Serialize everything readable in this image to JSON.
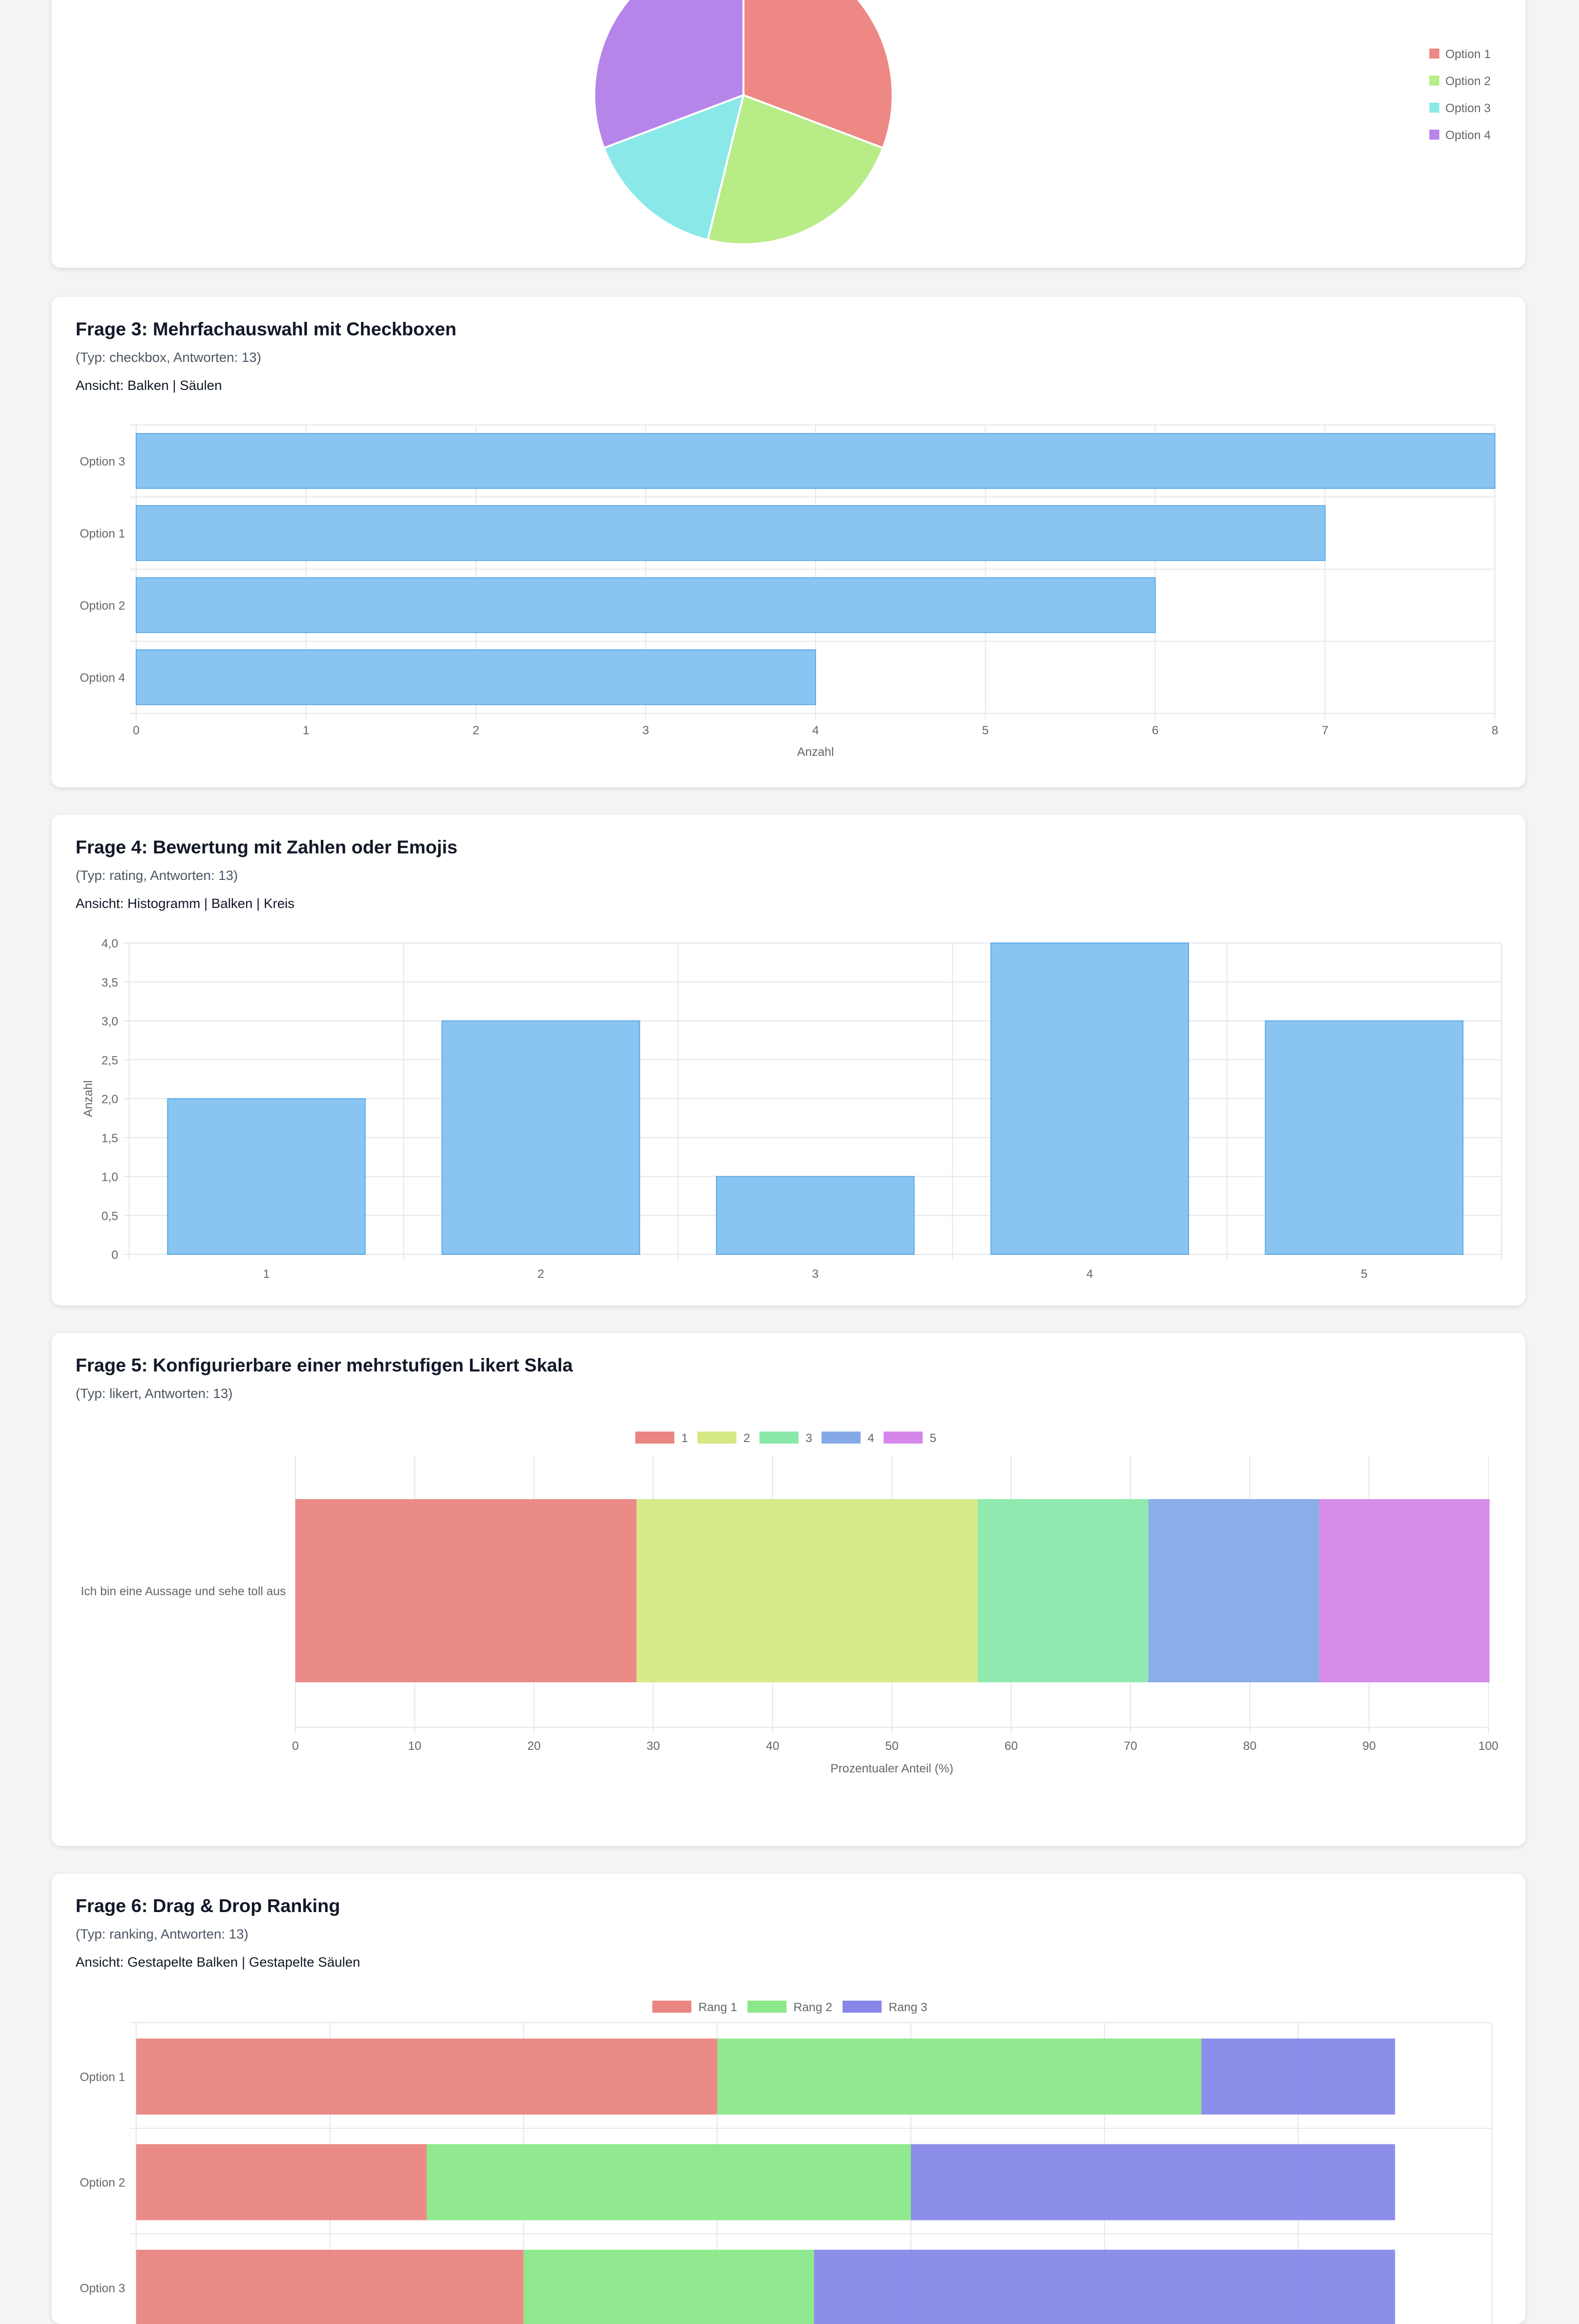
{
  "colors": {
    "bar_blue": "#8ac5f2",
    "bar_blue_border": "#5aa9e6",
    "grid": "#e5e7eb"
  },
  "q2": {
    "legend": [
      {
        "label": "Option 1",
        "color": "#ed8884"
      },
      {
        "label": "Option 2",
        "color": "#b8ec87"
      },
      {
        "label": "Option 3",
        "color": "#8ae8e8"
      },
      {
        "label": "Option 4",
        "color": "#b685e9"
      }
    ]
  },
  "q3": {
    "title": "Frage 3: Mehrfachauswahl mit Checkboxen",
    "meta": "(Typ: checkbox, Antworten: 13)",
    "view_prefix": "Ansicht: ",
    "views": [
      "Balken",
      "Säulen"
    ],
    "separator": " | "
  },
  "q4": {
    "title": "Frage 4: Bewertung mit Zahlen oder Emojis",
    "meta": "(Typ: rating, Antworten: 13)",
    "view_prefix": "Ansicht: ",
    "views": [
      "Histogramm",
      "Balken",
      "Kreis"
    ],
    "separator": " | "
  },
  "q5": {
    "title": "Frage 5: Konfigurierbare einer mehrstufigen Likert Skala",
    "meta": "(Typ: likert, Antworten: 13)"
  },
  "q6": {
    "title": "Frage 6: Drag & Drop Ranking",
    "meta": "(Typ: ranking, Antworten: 13)",
    "view_prefix": "Ansicht: ",
    "views": [
      "Gestapelte Balken",
      "Gestapelte Säulen"
    ],
    "separator": " | "
  },
  "chart_data": [
    {
      "type": "pie",
      "labels": [
        "Option 1",
        "Option 2",
        "Option 3",
        "Option 4"
      ],
      "values": [
        4,
        3,
        2,
        4
      ],
      "colors": [
        "#ed8884",
        "#b8ec87",
        "#8ae8e8",
        "#b685e9"
      ],
      "legend": "right"
    },
    {
      "type": "bar",
      "orientation": "horizontal",
      "categories": [
        "Option 3",
        "Option 1",
        "Option 2",
        "Option 4"
      ],
      "values": [
        8,
        7,
        6,
        4
      ],
      "xlabel": "Anzahl",
      "xlim": [
        0,
        8
      ],
      "ticks": [
        "0",
        "1",
        "2",
        "3",
        "4",
        "5",
        "6",
        "7",
        "8"
      ]
    },
    {
      "type": "bar",
      "categories": [
        "1",
        "2",
        "3",
        "4",
        "5"
      ],
      "values": [
        2,
        3,
        1,
        4,
        3
      ],
      "ylabel": "Anzahl",
      "ylim": [
        0,
        4
      ],
      "ticks": [
        "0",
        "0,5",
        "1,0",
        "1,5",
        "2,0",
        "2,5",
        "3,0",
        "3,5",
        "4,0"
      ]
    },
    {
      "type": "bar",
      "orientation": "horizontal",
      "stacked": true,
      "categories": [
        "Ich bin eine Aussage und sehe toll aus"
      ],
      "series": [
        {
          "name": "1",
          "values": [
            28.6
          ],
          "color": "#ea8582"
        },
        {
          "name": "2",
          "values": [
            28.6
          ],
          "color": "#d4e984"
        },
        {
          "name": "3",
          "values": [
            14.3
          ],
          "color": "#8ae8aa"
        },
        {
          "name": "4",
          "values": [
            14.3
          ],
          "color": "#85a9e7"
        },
        {
          "name": "5",
          "values": [
            14.3
          ],
          "color": "#d586e9"
        }
      ],
      "xlabel": "Prozentualer Anteil (%)",
      "xlim": [
        0,
        100
      ],
      "ticks": [
        "0",
        "10",
        "20",
        "30",
        "40",
        "50",
        "60",
        "70",
        "80",
        "90",
        "100"
      ],
      "legend": "top"
    },
    {
      "type": "bar",
      "orientation": "horizontal",
      "stacked": true,
      "categories": [
        "Option 1",
        "Option 2",
        "Option 3"
      ],
      "series": [
        {
          "name": "Rang 1",
          "values": [
            6,
            3,
            4
          ],
          "color": "#ea8582"
        },
        {
          "name": "Rang 2",
          "values": [
            5,
            5,
            3
          ],
          "color": "#8ae888"
        },
        {
          "name": "Rang 3",
          "values": [
            2,
            5,
            6
          ],
          "color": "#8787e9"
        }
      ],
      "xlim": [
        0,
        14
      ],
      "legend": "top"
    }
  ]
}
